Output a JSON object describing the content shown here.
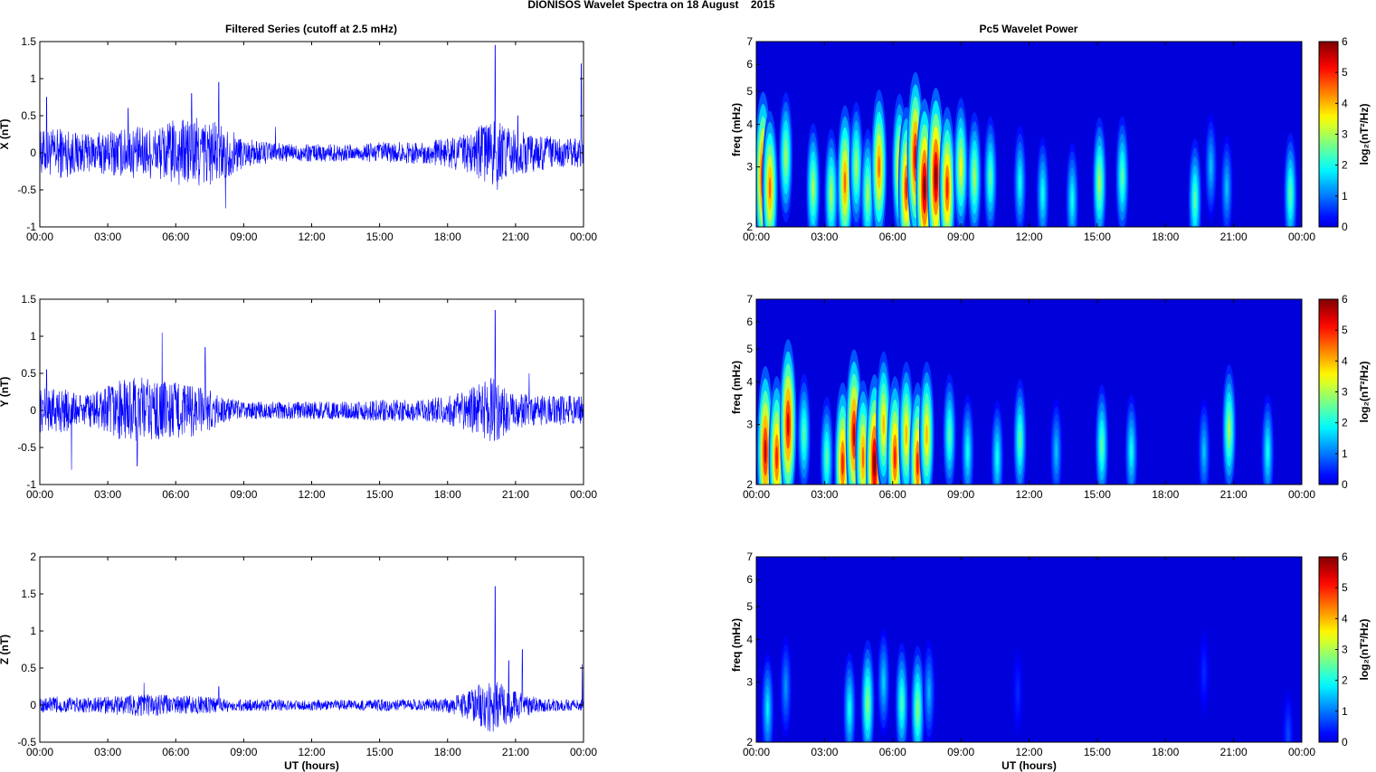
{
  "figure": {
    "title": "DIONISOS Wavelet Spectra on 18 August    2015"
  },
  "chart_data": [
    {
      "type": "line",
      "panel": "X-filtered",
      "title": "Filtered Series (cutoff at 2.5 mHz)",
      "ylabel": "X (nT)",
      "xlabel": "",
      "xlim": [
        "00:00",
        "24:00"
      ],
      "ylim": [
        -1,
        1.5
      ],
      "yticks": [
        "-1",
        "-0.5",
        "0",
        "0.5",
        "1",
        "1.5"
      ],
      "xticks": [
        "00:00",
        "03:00",
        "06:00",
        "09:00",
        "12:00",
        "15:00",
        "18:00",
        "21:00",
        "00:00"
      ],
      "series": [
        {
          "color": "#0000ff",
          "envelope_hours": [
            0,
            1,
            2,
            3,
            4,
            5,
            6,
            7,
            8,
            9,
            10,
            11,
            12,
            13,
            14,
            15,
            16,
            17,
            18,
            19,
            20,
            21,
            22,
            23,
            24
          ],
          "envelope_nT": [
            0.3,
            0.35,
            0.25,
            0.3,
            0.35,
            0.35,
            0.45,
            0.5,
            0.4,
            0.2,
            0.15,
            0.12,
            0.12,
            0.12,
            0.12,
            0.15,
            0.15,
            0.15,
            0.2,
            0.3,
            0.45,
            0.3,
            0.25,
            0.2,
            0.2
          ],
          "spikes": [
            [
              0.3,
              0.75
            ],
            [
              3.9,
              0.6
            ],
            [
              6.7,
              0.8
            ],
            [
              7.9,
              0.95
            ],
            [
              8.2,
              -0.75
            ],
            [
              10.4,
              0.35
            ],
            [
              20.1,
              1.45
            ],
            [
              20.2,
              -0.5
            ],
            [
              21.1,
              0.5
            ],
            [
              23.9,
              1.2
            ]
          ]
        }
      ]
    },
    {
      "type": "heatmap",
      "panel": "X-wavelet",
      "title": "Pc5 Wavelet Power",
      "ylabel": "freq (mHz)",
      "xlabel": "",
      "yscale": "log",
      "ylim": [
        2,
        7
      ],
      "yticks": [
        "2",
        "3",
        "4",
        "5",
        "6",
        "7"
      ],
      "xticks": [
        "00:00",
        "03:00",
        "06:00",
        "09:00",
        "12:00",
        "15:00",
        "18:00",
        "21:00",
        "00:00"
      ],
      "colorbar": {
        "label": "log₂(nT²/Hz)",
        "range": [
          0,
          6
        ],
        "ticks": [
          "0",
          "1",
          "2",
          "3",
          "4",
          "5",
          "6"
        ],
        "colormap": "jet"
      },
      "blobs_hours_mHz_power": [
        [
          0.3,
          2.8,
          5.5
        ],
        [
          0.6,
          2.6,
          4.5
        ],
        [
          1.3,
          3.2,
          3
        ],
        [
          2.5,
          2.6,
          3
        ],
        [
          3.3,
          2.5,
          3
        ],
        [
          3.9,
          2.7,
          4.5
        ],
        [
          4.4,
          3.0,
          3
        ],
        [
          4.9,
          2.5,
          3
        ],
        [
          5.4,
          3.0,
          4.5
        ],
        [
          6.3,
          3.0,
          4
        ],
        [
          6.6,
          2.6,
          5
        ],
        [
          7.0,
          3.2,
          5.5
        ],
        [
          7.4,
          2.6,
          6
        ],
        [
          7.9,
          2.8,
          6
        ],
        [
          8.4,
          2.6,
          5
        ],
        [
          9.0,
          3.0,
          3.5
        ],
        [
          9.6,
          2.8,
          3
        ],
        [
          10.3,
          2.8,
          2.5
        ],
        [
          11.6,
          2.7,
          2
        ],
        [
          12.6,
          2.5,
          2
        ],
        [
          13.9,
          2.4,
          2
        ],
        [
          15.1,
          2.7,
          3
        ],
        [
          16.1,
          2.8,
          2.5
        ],
        [
          19.3,
          2.4,
          2.5
        ],
        [
          20.0,
          3.0,
          1.5
        ],
        [
          20.7,
          2.6,
          1.5
        ],
        [
          23.5,
          2.5,
          2.5
        ]
      ]
    },
    {
      "type": "line",
      "panel": "Y-filtered",
      "title": "",
      "ylabel": "Y (nT)",
      "xlabel": "",
      "xlim": [
        "00:00",
        "24:00"
      ],
      "ylim": [
        -1,
        1.5
      ],
      "yticks": [
        "-1",
        "-0.5",
        "0",
        "0.5",
        "1",
        "1.5"
      ],
      "xticks": [
        "00:00",
        "03:00",
        "06:00",
        "09:00",
        "12:00",
        "15:00",
        "18:00",
        "21:00",
        "00:00"
      ],
      "series": [
        {
          "color": "#0000ff",
          "envelope_hours": [
            0,
            1,
            2,
            3,
            4,
            5,
            6,
            7,
            8,
            9,
            10,
            11,
            12,
            13,
            14,
            15,
            16,
            17,
            18,
            19,
            20,
            21,
            22,
            23,
            24
          ],
          "envelope_nT": [
            0.3,
            0.3,
            0.2,
            0.35,
            0.45,
            0.45,
            0.4,
            0.35,
            0.2,
            0.12,
            0.12,
            0.12,
            0.12,
            0.12,
            0.12,
            0.15,
            0.15,
            0.15,
            0.2,
            0.3,
            0.45,
            0.25,
            0.2,
            0.2,
            0.2
          ],
          "spikes": [
            [
              0.3,
              0.55
            ],
            [
              1.4,
              -0.8
            ],
            [
              4.3,
              -0.75
            ],
            [
              5.4,
              1.05
            ],
            [
              7.3,
              0.85
            ],
            [
              20.1,
              1.35
            ],
            [
              20.2,
              -0.4
            ],
            [
              21.6,
              0.5
            ],
            [
              24.0,
              -0.6
            ]
          ]
        }
      ]
    },
    {
      "type": "heatmap",
      "panel": "Y-wavelet",
      "title": "",
      "ylabel": "freq (mHz)",
      "xlabel": "",
      "yscale": "log",
      "ylim": [
        2,
        7
      ],
      "yticks": [
        "2",
        "3",
        "4",
        "5",
        "6",
        "7"
      ],
      "xticks": [
        "00:00",
        "03:00",
        "06:00",
        "09:00",
        "12:00",
        "15:00",
        "18:00",
        "21:00",
        "00:00"
      ],
      "colorbar": {
        "label": "log₂(nT²/Hz)",
        "range": [
          0,
          6
        ],
        "ticks": [
          "0",
          "1",
          "2",
          "3",
          "4",
          "5",
          "6"
        ],
        "colormap": "jet"
      },
      "blobs_hours_mHz_power": [
        [
          0.4,
          2.5,
          5.5
        ],
        [
          0.9,
          2.4,
          5
        ],
        [
          1.4,
          3.0,
          5.5
        ],
        [
          2.1,
          2.8,
          2.5
        ],
        [
          3.1,
          2.4,
          2.5
        ],
        [
          3.8,
          2.3,
          5
        ],
        [
          4.3,
          2.8,
          5.5
        ],
        [
          4.7,
          2.4,
          4.5
        ],
        [
          5.2,
          2.3,
          6
        ],
        [
          5.6,
          3.0,
          4
        ],
        [
          6.1,
          2.4,
          5
        ],
        [
          6.6,
          2.8,
          4
        ],
        [
          7.1,
          2.3,
          5
        ],
        [
          7.5,
          2.8,
          4
        ],
        [
          8.5,
          2.8,
          2.5
        ],
        [
          9.3,
          2.5,
          2
        ],
        [
          10.6,
          2.4,
          2
        ],
        [
          11.6,
          2.7,
          2.5
        ],
        [
          13.2,
          2.5,
          1.5
        ],
        [
          15.2,
          2.6,
          2.5
        ],
        [
          16.5,
          2.5,
          2
        ],
        [
          19.7,
          2.5,
          1.5
        ],
        [
          20.8,
          2.9,
          3
        ],
        [
          22.5,
          2.5,
          2
        ]
      ]
    },
    {
      "type": "line",
      "panel": "Z-filtered",
      "title": "",
      "ylabel": "Z (nT)",
      "xlabel": "UT (hours)",
      "xlim": [
        "00:00",
        "24:00"
      ],
      "ylim": [
        -0.5,
        2
      ],
      "yticks": [
        "-0.5",
        "0",
        "0.5",
        "1",
        "1.5",
        "2"
      ],
      "xticks": [
        "00:00",
        "03:00",
        "06:00",
        "09:00",
        "12:00",
        "15:00",
        "18:00",
        "21:00",
        "00:00"
      ],
      "series": [
        {
          "color": "#0000ff",
          "envelope_hours": [
            0,
            1,
            2,
            3,
            4,
            5,
            6,
            7,
            8,
            9,
            10,
            11,
            12,
            13,
            14,
            15,
            16,
            17,
            18,
            19,
            20,
            21,
            22,
            23,
            24
          ],
          "envelope_nT": [
            0.1,
            0.12,
            0.1,
            0.12,
            0.15,
            0.15,
            0.13,
            0.12,
            0.1,
            0.08,
            0.08,
            0.07,
            0.07,
            0.07,
            0.07,
            0.08,
            0.08,
            0.08,
            0.1,
            0.2,
            0.4,
            0.2,
            0.1,
            0.08,
            0.08
          ],
          "spikes": [
            [
              4.6,
              0.3
            ],
            [
              7.9,
              0.25
            ],
            [
              20.1,
              1.6
            ],
            [
              20.2,
              -0.3
            ],
            [
              20.7,
              0.6
            ],
            [
              21.3,
              0.75
            ],
            [
              23.95,
              0.55
            ]
          ]
        }
      ]
    },
    {
      "type": "heatmap",
      "panel": "Z-wavelet",
      "title": "",
      "ylabel": "freq (mHz)",
      "xlabel": "UT (hours)",
      "yscale": "log",
      "ylim": [
        2,
        7
      ],
      "yticks": [
        "2",
        "3",
        "4",
        "5",
        "6",
        "7"
      ],
      "xticks": [
        "00:00",
        "03:00",
        "06:00",
        "09:00",
        "12:00",
        "15:00",
        "18:00",
        "21:00",
        "00:00"
      ],
      "colorbar": {
        "label": "log₂(nT²/Hz)",
        "range": [
          0,
          6
        ],
        "ticks": [
          "0",
          "1",
          "2",
          "3",
          "4",
          "5",
          "6"
        ],
        "colormap": "jet"
      },
      "blobs_hours_mHz_power": [
        [
          0.5,
          2.5,
          1.8
        ],
        [
          1.3,
          2.9,
          1.2
        ],
        [
          4.1,
          2.5,
          2
        ],
        [
          4.9,
          2.6,
          2.8
        ],
        [
          5.6,
          3.0,
          1.6
        ],
        [
          6.4,
          2.6,
          2.4
        ],
        [
          7.1,
          2.5,
          2.8
        ],
        [
          7.6,
          2.8,
          1.4
        ],
        [
          11.5,
          2.8,
          0.5
        ],
        [
          19.7,
          3.2,
          0.5
        ],
        [
          23.4,
          2.1,
          0.7
        ]
      ]
    }
  ]
}
